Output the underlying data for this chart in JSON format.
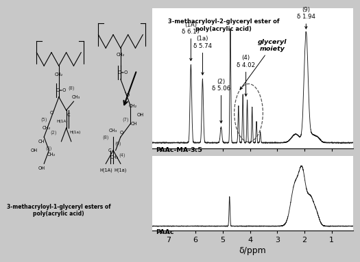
{
  "fig_bg": "#c8c8c8",
  "plot_bg": "#f5f5f0",
  "spectrum_color": "#1a1a1a",
  "label_top": "PAAc-MA-3.5",
  "label_bottom": "PAAc",
  "xlabel": "δ/ppm",
  "xlim": [
    7.6,
    0.2
  ],
  "xticks": [
    7,
    6,
    5,
    4,
    3,
    2,
    1
  ],
  "ann_1A_label": "(1A)\nδ 6.17",
  "ann_1a_label": "(1a)\nδ 5.74",
  "ann_2_label": "(2)\nδ 5.06",
  "ann_4_label": "(4)\nδ 4.02",
  "ann_9_label": "(9)\nδ 1.94",
  "glyceryl_label": "glyceryl\nmoiety",
  "label_upper_struct": "3-methacryloyl-2-glyceryl ester of\npoly(acrylic acid)",
  "label_lower_struct": "3-methacryloyl-1-glyceryl esters of\npoly(acrylic acid)"
}
